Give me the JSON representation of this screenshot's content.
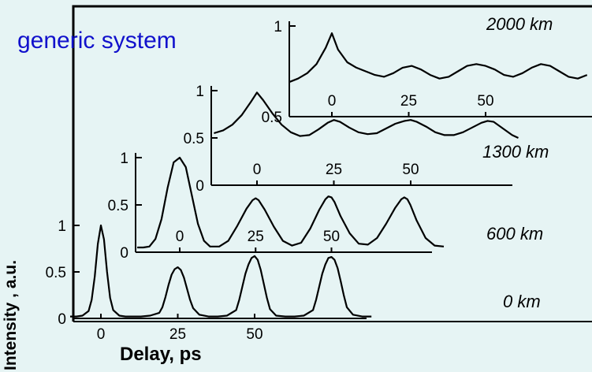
{
  "heading": "generic system",
  "chart_data": {
    "type": "line",
    "xlabel": "Delay, ps",
    "ylabel": "Intensity , a.u.",
    "grid": false,
    "series": [
      {
        "name": "0 km",
        "x": [
          -10,
          -8,
          -6,
          -4,
          -3,
          -2,
          -1,
          0,
          1,
          2,
          3,
          4,
          6,
          8,
          10,
          13,
          16,
          19,
          20,
          21,
          22,
          23,
          24,
          25,
          26,
          27,
          28,
          29,
          30,
          32,
          35,
          38,
          41,
          44,
          45,
          46,
          47,
          48,
          49,
          50,
          51,
          52,
          53,
          54,
          55,
          57,
          60,
          63,
          66,
          69,
          70,
          71,
          72,
          73,
          74,
          75,
          76,
          77,
          78,
          79,
          80,
          82,
          85,
          88
        ],
        "y": [
          0.02,
          0.02,
          0.03,
          0.08,
          0.2,
          0.45,
          0.8,
          1.0,
          0.85,
          0.5,
          0.22,
          0.09,
          0.03,
          0.02,
          0.02,
          0.02,
          0.03,
          0.06,
          0.12,
          0.23,
          0.36,
          0.47,
          0.53,
          0.55,
          0.52,
          0.44,
          0.32,
          0.2,
          0.11,
          0.04,
          0.02,
          0.02,
          0.03,
          0.09,
          0.2,
          0.34,
          0.48,
          0.58,
          0.65,
          0.67,
          0.63,
          0.52,
          0.37,
          0.22,
          0.1,
          0.03,
          0.02,
          0.02,
          0.03,
          0.09,
          0.2,
          0.34,
          0.48,
          0.58,
          0.65,
          0.66,
          0.63,
          0.54,
          0.4,
          0.25,
          0.12,
          0.04,
          0.02,
          0.02
        ]
      },
      {
        "name": "600 km",
        "x": [
          -14,
          -12,
          -10,
          -8,
          -6,
          -4,
          -2,
          0,
          2,
          4,
          6,
          8,
          10,
          13,
          16,
          19,
          22,
          24,
          25,
          26,
          28,
          31,
          34,
          37,
          40,
          43,
          46,
          48,
          49,
          50,
          51,
          53,
          56,
          59,
          62,
          65,
          68,
          71,
          73,
          74,
          75,
          76,
          78,
          81,
          84,
          87
        ],
        "y": [
          0.05,
          0.05,
          0.06,
          0.14,
          0.35,
          0.68,
          0.95,
          1.0,
          0.9,
          0.6,
          0.3,
          0.12,
          0.06,
          0.06,
          0.12,
          0.28,
          0.46,
          0.55,
          0.57,
          0.55,
          0.45,
          0.27,
          0.12,
          0.07,
          0.1,
          0.25,
          0.45,
          0.56,
          0.59,
          0.58,
          0.53,
          0.38,
          0.2,
          0.09,
          0.08,
          0.15,
          0.3,
          0.47,
          0.56,
          0.58,
          0.56,
          0.5,
          0.34,
          0.15,
          0.07,
          0.06
        ]
      },
      {
        "name": "1300 km",
        "x": [
          -14,
          -11,
          -8,
          -5,
          -2,
          0,
          2,
          5,
          8,
          11,
          14,
          17,
          20,
          23,
          25,
          27,
          30,
          33,
          36,
          39,
          42,
          45,
          48,
          50,
          52,
          55,
          58,
          61,
          64,
          67,
          70,
          73,
          75,
          77,
          80,
          83,
          85
        ],
        "y": [
          0.55,
          0.58,
          0.64,
          0.74,
          0.88,
          0.98,
          0.9,
          0.76,
          0.64,
          0.56,
          0.52,
          0.53,
          0.59,
          0.66,
          0.69,
          0.67,
          0.61,
          0.56,
          0.54,
          0.55,
          0.6,
          0.65,
          0.68,
          0.69,
          0.67,
          0.62,
          0.56,
          0.53,
          0.53,
          0.56,
          0.61,
          0.66,
          0.68,
          0.67,
          0.6,
          0.53,
          0.5
        ]
      },
      {
        "name": "2000 km",
        "x": [
          -14,
          -11,
          -8,
          -5,
          -2,
          0,
          2,
          5,
          8,
          11,
          14,
          17,
          20,
          23,
          26,
          29,
          32,
          35,
          38,
          41,
          44,
          47,
          50,
          53,
          56,
          59,
          62,
          65,
          68,
          71,
          74,
          77,
          80,
          83
        ],
        "y": [
          0.69,
          0.71,
          0.74,
          0.79,
          0.88,
          0.96,
          0.87,
          0.8,
          0.77,
          0.75,
          0.73,
          0.72,
          0.74,
          0.77,
          0.78,
          0.76,
          0.73,
          0.71,
          0.72,
          0.75,
          0.78,
          0.79,
          0.78,
          0.76,
          0.73,
          0.72,
          0.74,
          0.77,
          0.79,
          0.78,
          0.75,
          0.72,
          0.71,
          0.73
        ]
      }
    ],
    "panels": [
      {
        "series": "0 km",
        "xticks": [
          "0",
          "25",
          "50"
        ],
        "yticks": [
          "0",
          "0.5",
          "1"
        ]
      },
      {
        "series": "600 km",
        "xticks": [
          "0",
          "25",
          "50"
        ],
        "yticks": [
          "0",
          "0.5",
          "1"
        ]
      },
      {
        "series": "1300 km",
        "xticks": [
          "0",
          "25",
          "50"
        ],
        "yticks": [
          "0",
          "0.5",
          "1"
        ]
      },
      {
        "series": "2000 km",
        "xticks": [
          "0",
          "25",
          "50"
        ],
        "yticks": [
          "0.5",
          "1"
        ]
      }
    ]
  }
}
